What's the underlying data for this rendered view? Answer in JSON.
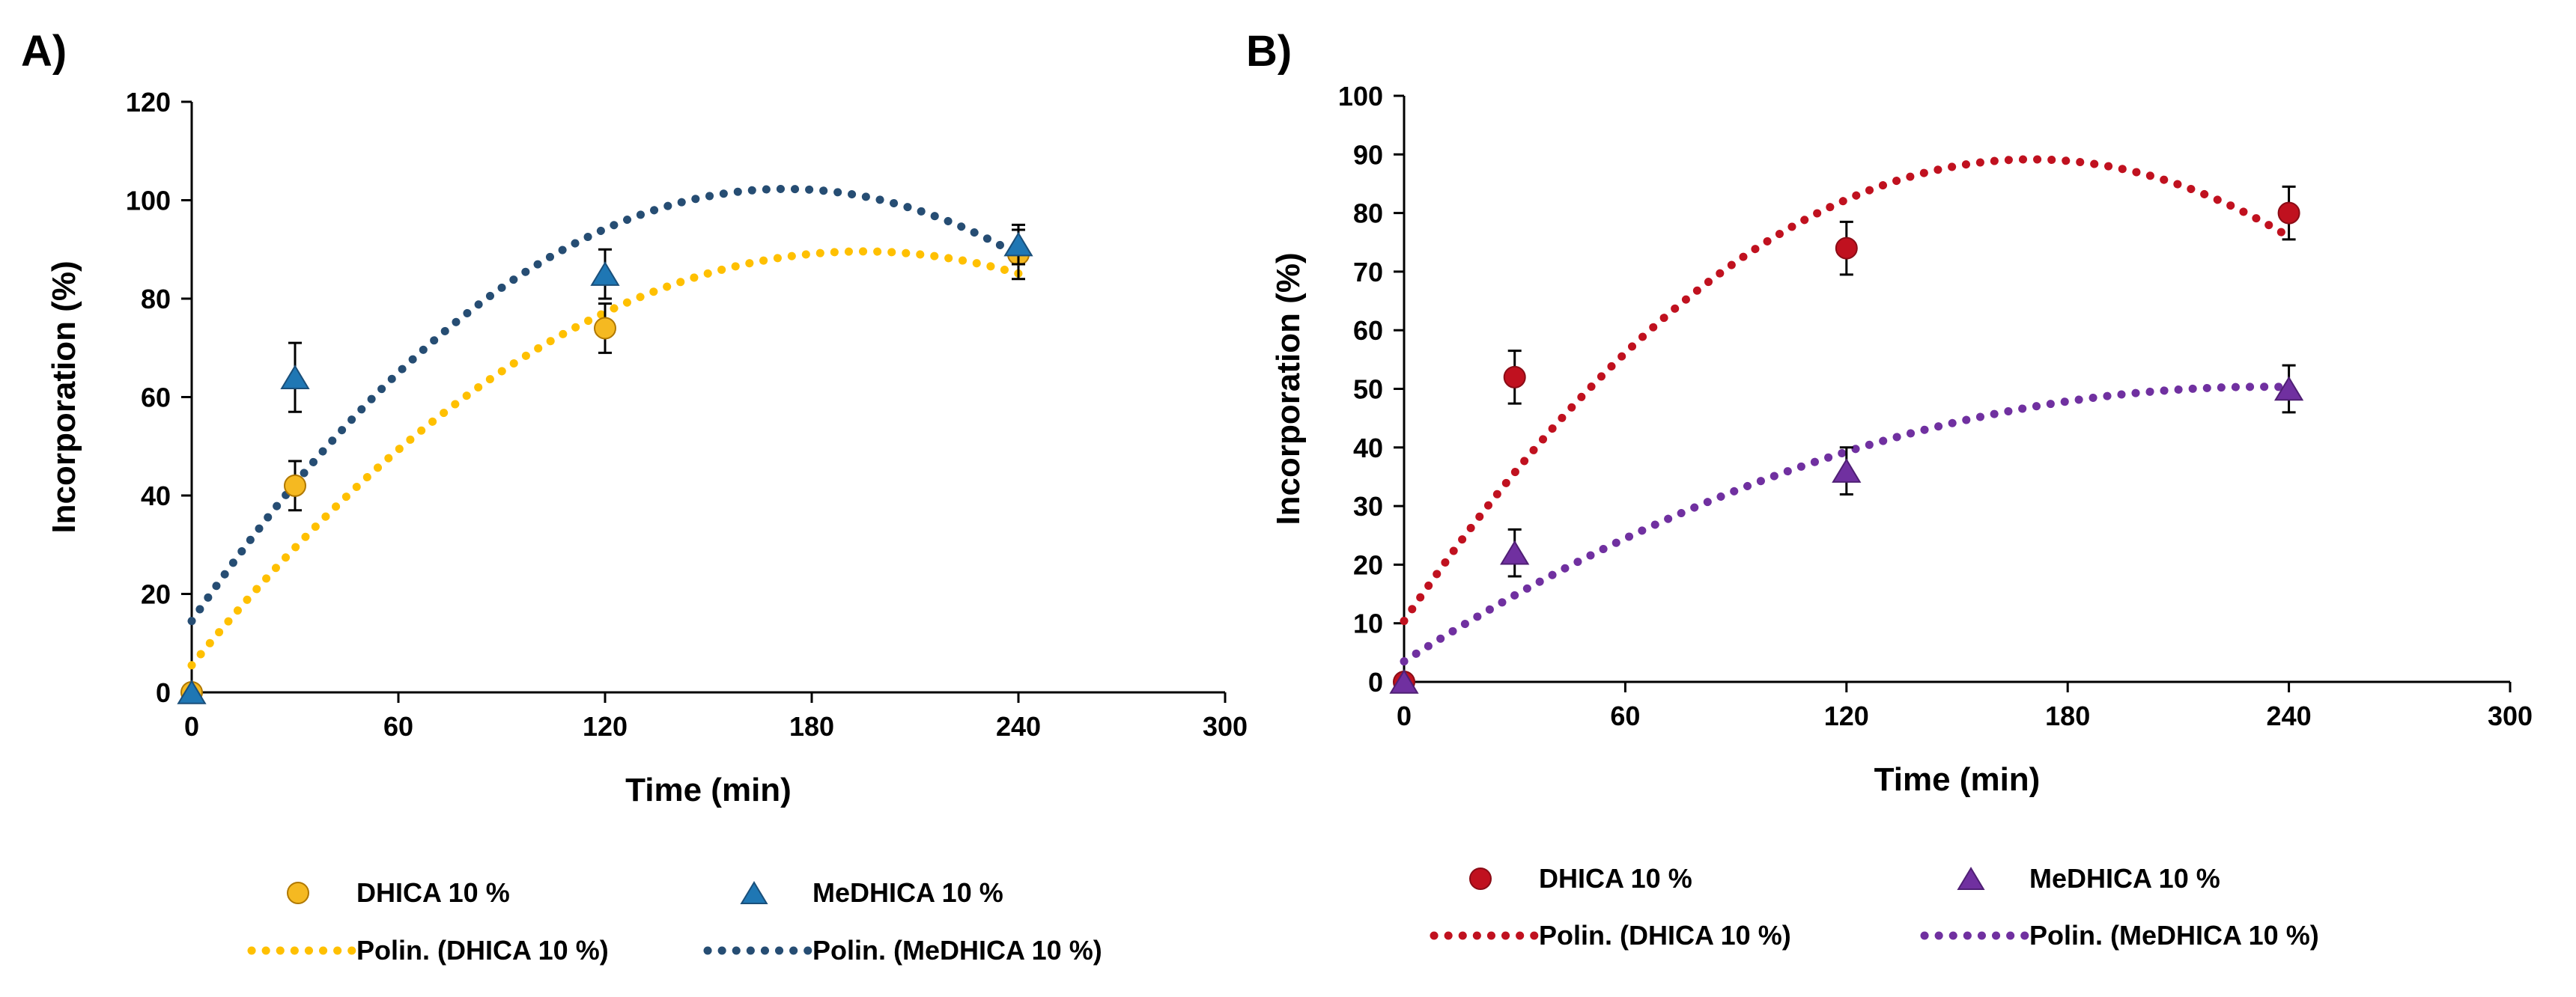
{
  "chart_data": [
    {
      "panel": "A)",
      "type": "scatter",
      "xlabel": "Time (min)",
      "ylabel": "Incorporation (%)",
      "xlim": [
        0,
        300
      ],
      "ylim": [
        0,
        120
      ],
      "xticks": [
        0,
        60,
        120,
        180,
        240,
        300
      ],
      "yticks": [
        0,
        20,
        40,
        60,
        80,
        100,
        120
      ],
      "legend_position": "bottom",
      "series": [
        {
          "name": "DHICA 10 %",
          "marker": "circle",
          "color": "#f5b921",
          "stroke": "#b07800",
          "x": [
            0,
            30,
            120,
            240
          ],
          "y": [
            0,
            42,
            74,
            89
          ],
          "err": [
            0,
            5,
            5,
            5
          ],
          "trend": {
            "name": "Polin. (DHICA 10 %)",
            "color": "#ffc000",
            "coef": [
              5.5,
              0.863,
              -0.002214
            ]
          }
        },
        {
          "name": "MeDHICA 10 %",
          "marker": "triangle",
          "color": "#1f77b4",
          "stroke": "#1a4f7a",
          "x": [
            0,
            30,
            120,
            240
          ],
          "y": [
            0,
            64,
            85,
            91
          ],
          "err": [
            0,
            7,
            5,
            4
          ],
          "trend": {
            "name": "Polin. (MeDHICA 10 %)",
            "color": "#264d73",
            "coef": [
              14.5,
              1.018,
              -0.002951
            ]
          }
        }
      ]
    },
    {
      "panel": "B)",
      "type": "scatter",
      "xlabel": "Time (min)",
      "ylabel": "Incorporation (%)",
      "xlim": [
        0,
        300
      ],
      "ylim": [
        0,
        100
      ],
      "xticks": [
        0,
        60,
        120,
        180,
        240,
        300
      ],
      "yticks": [
        0,
        10,
        20,
        30,
        40,
        50,
        60,
        70,
        80,
        90,
        100
      ],
      "legend_position": "bottom",
      "series": [
        {
          "name": "DHICA 10 %",
          "marker": "circle",
          "color": "#c0111f",
          "stroke": "#8a0c16",
          "x": [
            0,
            30,
            120,
            240
          ],
          "y": [
            0,
            52,
            74,
            80
          ],
          "err": [
            0,
            4.5,
            4.5,
            4.5
          ],
          "trend": {
            "name": "Polin. (DHICA 10 %)",
            "color": "#c0111f",
            "coef": [
              10.4,
              0.925,
              -0.002716
            ]
          }
        },
        {
          "name": "MeDHICA 10 %",
          "marker": "triangle",
          "color": "#7030a0",
          "stroke": "#4f1f74",
          "x": [
            0,
            30,
            120,
            240
          ],
          "y": [
            0,
            22,
            36,
            50
          ],
          "err": [
            0,
            4,
            4,
            4
          ],
          "trend": {
            "name": "Polin. (MeDHICA 10 %)",
            "color": "#7030a0",
            "coef": [
              3.5,
              0.401,
              -0.000858
            ]
          }
        }
      ]
    }
  ]
}
